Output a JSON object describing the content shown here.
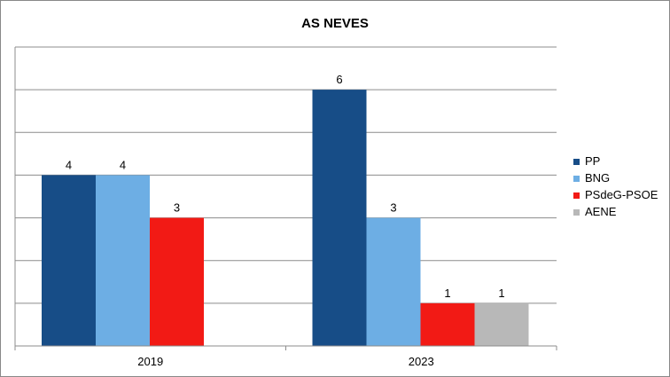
{
  "chart_data": {
    "type": "bar",
    "title": "AS NEVES",
    "categories": [
      "2019",
      "2023"
    ],
    "ylim": [
      0,
      7
    ],
    "grid": true,
    "legend_position": "right",
    "series": [
      {
        "name": "PP",
        "color": "#174D87",
        "values": [
          4,
          6
        ]
      },
      {
        "name": "BNG",
        "color": "#6DAEE4",
        "values": [
          4,
          3
        ]
      },
      {
        "name": "PSdeG-PSOE",
        "color": "#F21A15",
        "values": [
          3,
          1
        ]
      },
      {
        "name": "AENE",
        "color": "#B8B8B8",
        "values": [
          null,
          1
        ]
      }
    ]
  }
}
